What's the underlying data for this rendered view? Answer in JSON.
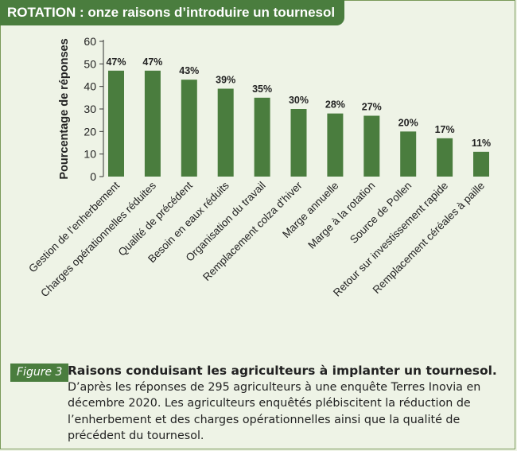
{
  "header": {
    "title": "ROTATION : onze raisons d’introduire un tournesol"
  },
  "chart_data": {
    "type": "bar",
    "ylabel": "Pourcentage de réponses",
    "xlabel": "",
    "ylim": [
      0,
      60
    ],
    "yticks": [
      0,
      10,
      20,
      30,
      40,
      50,
      60
    ],
    "grid": false,
    "categories": [
      "Gestion de l’enherbement",
      "Charges opérationnelles réduites",
      "Qualité de précédent",
      "Besoin en eaux réduits",
      "Organisation du travail",
      "Remplacement colza d’hiver",
      "Marge annuelle",
      "Marge à la rotation",
      "Source de Pollen",
      "Retour sur investissement rapide",
      "Remplacement céréales à paille"
    ],
    "values": [
      47,
      47,
      43,
      39,
      35,
      30,
      28,
      27,
      20,
      17,
      11
    ],
    "data_labels": [
      "47%",
      "47%",
      "43%",
      "39%",
      "35%",
      "30%",
      "28%",
      "27%",
      "20%",
      "17%",
      "11%"
    ],
    "bar_color": "#4a7d3e"
  },
  "caption": {
    "figure_tag": "Figure 3",
    "title": "Raisons conduisant les agriculteurs à implanter un tournesol.",
    "text": "D’après les réponses de 295 agriculteurs à une enquête Terres Inovia en décembre 2020. Les agriculteurs enquêtés plébiscitent la réduction de l’enherbement et des charges opérationnelles ainsi que la qualité de précédent du tournesol."
  }
}
